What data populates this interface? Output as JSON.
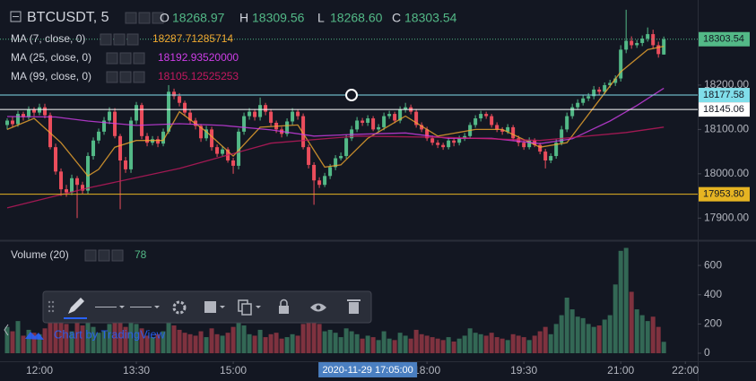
{
  "chart_data": {
    "type": "candlestick",
    "title": "BTCUSDT, 5",
    "ohlc_legend": [
      {
        "key": "O",
        "value": "18268.97"
      },
      {
        "key": "H",
        "value": "18309.56"
      },
      {
        "key": "L",
        "value": "18268.60"
      },
      {
        "key": "C",
        "value": "18303.54"
      }
    ],
    "up_color": "#53b987",
    "down_color": "#eb4d5c",
    "candles": {
      "open": [
        18110,
        18120,
        18112,
        18135,
        18128,
        18145,
        18138,
        18150,
        18132,
        18060,
        18005,
        17965,
        17958,
        17990,
        17975,
        17962,
        18040,
        18075,
        18095,
        18120,
        18140,
        18085,
        18030,
        18010,
        18120,
        18155,
        18085,
        18070,
        18078,
        18068,
        18095,
        18185,
        18175,
        18160,
        18138,
        18120,
        18108,
        18080,
        18100,
        18060,
        18045,
        18055,
        18030,
        18018,
        18095,
        18130,
        18140,
        18128,
        18155,
        18140,
        18115,
        18100,
        18090,
        18118,
        18140,
        18130,
        18060,
        18020,
        17985,
        17975,
        17995,
        18015,
        18035,
        18040,
        18080,
        18100,
        18120,
        18115,
        18125,
        18100,
        18105,
        18130,
        18135,
        18120,
        18145,
        18150,
        18140,
        18110,
        18100,
        18080,
        18070,
        18065,
        18060,
        18075,
        18070,
        18080,
        18085,
        18110,
        18125,
        18135,
        18130,
        18110,
        18100,
        18095,
        18105,
        18080,
        18070,
        18060,
        18075,
        18065,
        18050,
        18030,
        18040,
        18070,
        18100,
        18130,
        18150,
        18160,
        18170,
        18175,
        18190,
        18185,
        18200,
        18205,
        18215,
        18280,
        18300,
        18290,
        18295,
        18305,
        18315,
        18290,
        18268.97
      ],
      "high": [
        18125,
        18128,
        18142,
        18140,
        18152,
        18150,
        18158,
        18158,
        18138,
        18068,
        18012,
        17975,
        17998,
        17995,
        17982,
        18048,
        18082,
        18102,
        18128,
        18150,
        18148,
        18090,
        18038,
        18128,
        18162,
        18160,
        18092,
        18085,
        18085,
        18102,
        18200,
        18192,
        18182,
        18165,
        18145,
        18126,
        18112,
        18108,
        18106,
        18066,
        18062,
        18060,
        18036,
        18102,
        18138,
        18148,
        18146,
        18172,
        18160,
        18146,
        18120,
        18106,
        18125,
        18148,
        18145,
        18136,
        18066,
        18026,
        17992,
        18002,
        18022,
        18042,
        18048,
        18088,
        18108,
        18128,
        18126,
        18132,
        18130,
        18112,
        18138,
        18142,
        18140,
        18152,
        18160,
        18156,
        18146,
        18116,
        18106,
        18086,
        18076,
        18070,
        18082,
        18080,
        18086,
        18092,
        18116,
        18132,
        18142,
        18140,
        18135,
        18116,
        18105,
        18112,
        18110,
        18086,
        18076,
        18082,
        18080,
        18070,
        18056,
        18046,
        18078,
        18108,
        18138,
        18158,
        18168,
        18178,
        18182,
        18198,
        18196,
        18206,
        18212,
        18222,
        18290,
        18370,
        18310,
        18302,
        18312,
        18330,
        18325,
        18298,
        18309.56
      ],
      "low": [
        18100,
        18105,
        18106,
        18120,
        18122,
        18130,
        18132,
        18125,
        18055,
        17998,
        17950,
        17948,
        17952,
        17900,
        17955,
        17955,
        18032,
        18068,
        18088,
        18112,
        18080,
        17920,
        18002,
        18002,
        18112,
        18078,
        18062,
        18064,
        18060,
        18062,
        18090,
        18168,
        18152,
        18130,
        18112,
        18100,
        18072,
        18074,
        18052,
        18038,
        18040,
        18025,
        18000,
        18010,
        18088,
        18122,
        18120,
        18120,
        18132,
        18108,
        18092,
        18082,
        18084,
        18110,
        18122,
        18055,
        18012,
        17930,
        17968,
        17970,
        17988,
        18008,
        18030,
        18034,
        18074,
        18094,
        18108,
        18108,
        18096,
        18094,
        18098,
        18124,
        18114,
        18114,
        18138,
        18134,
        18104,
        18094,
        18074,
        18064,
        18058,
        18054,
        18055,
        18062,
        18064,
        18074,
        18080,
        18104,
        18118,
        18124,
        18104,
        18094,
        18088,
        18090,
        18074,
        18062,
        18054,
        18055,
        18060,
        18044,
        18012,
        18024,
        18034,
        18064,
        18094,
        18124,
        18144,
        18154,
        18164,
        18168,
        18178,
        18180,
        18194,
        18198,
        18208,
        18272,
        18282,
        18284,
        18288,
        18298,
        18282,
        18262,
        18268.6
      ],
      "close": [
        18120,
        18112,
        18135,
        18128,
        18145,
        18138,
        18150,
        18132,
        18060,
        18005,
        17965,
        17958,
        17990,
        17975,
        17962,
        18040,
        18075,
        18095,
        18120,
        18140,
        18085,
        18030,
        18010,
        18120,
        18155,
        18085,
        18070,
        18078,
        18068,
        18095,
        18185,
        18175,
        18160,
        18138,
        18120,
        18108,
        18080,
        18100,
        18060,
        18045,
        18055,
        18030,
        18018,
        18095,
        18130,
        18140,
        18128,
        18155,
        18140,
        18115,
        18100,
        18090,
        18118,
        18140,
        18130,
        18060,
        18020,
        17985,
        17975,
        17995,
        18015,
        18035,
        18040,
        18080,
        18100,
        18120,
        18115,
        18125,
        18100,
        18105,
        18130,
        18135,
        18120,
        18145,
        18150,
        18140,
        18110,
        18100,
        18080,
        18070,
        18065,
        18060,
        18075,
        18070,
        18080,
        18085,
        18110,
        18125,
        18135,
        18130,
        18110,
        18100,
        18095,
        18105,
        18080,
        18070,
        18060,
        18075,
        18065,
        18050,
        18030,
        18040,
        18070,
        18100,
        18130,
        18150,
        18160,
        18170,
        18175,
        18190,
        18185,
        18200,
        18205,
        18215,
        18280,
        18300,
        18290,
        18295,
        18305,
        18315,
        18290,
        18270,
        18303.54
      ]
    },
    "indicators": [
      {
        "name": "MA (7, close, 0)",
        "value": "18287.71285714",
        "color": "#f0a830",
        "x": [
          0,
          5,
          10,
          15,
          17,
          20,
          24,
          29,
          32,
          37,
          42,
          47,
          54,
          59,
          62,
          67,
          74,
          80,
          87,
          92,
          99,
          104,
          109,
          114,
          119,
          122
        ],
        "values": [
          18100,
          18125,
          18070,
          17995,
          18010,
          18060,
          18075,
          18075,
          18140,
          18095,
          18040,
          18105,
          18110,
          18015,
          18020,
          18080,
          18130,
          18085,
          18100,
          18100,
          18060,
          18070,
          18150,
          18230,
          18280,
          18287.71
        ]
      },
      {
        "name": "MA (25, close, 0)",
        "value": "18192.93520000",
        "color": "#cf3ee8",
        "x": [
          0,
          9,
          15,
          24,
          32,
          40,
          49,
          57,
          65,
          74,
          82,
          90,
          99,
          105,
          112,
          117,
          122
        ],
        "values": [
          18129,
          18128,
          18119,
          18109,
          18113,
          18109,
          18099,
          18085,
          18089,
          18092,
          18080,
          18080,
          18068,
          18079,
          18119,
          18154,
          18192.94
        ]
      },
      {
        "name": "MA (99, close, 0)",
        "value": "18105.12525253",
        "color": "#c4195f",
        "x": [
          0,
          15,
          32,
          49,
          65,
          82,
          99,
          115,
          122
        ],
        "values": [
          17923,
          17968,
          18012,
          18069,
          18085,
          18082,
          18075,
          18093,
          18105.13
        ]
      }
    ],
    "ylim": [
      17850,
      18392
    ],
    "yticks": [
      {
        "value": 18200,
        "label": "18200.00"
      },
      {
        "value": 18100,
        "label": "18100.00"
      },
      {
        "value": 18000,
        "label": "18000.00"
      },
      {
        "value": 17900,
        "label": "17900.00"
      }
    ],
    "price_lines": [
      {
        "value": 18303.54,
        "label": "18303.54",
        "color": "#53b987",
        "style": "dotted"
      },
      {
        "value": 18177.58,
        "label": "18177.58",
        "color": "#80deea",
        "style": "solid"
      },
      {
        "value": 18145.06,
        "label": "18145.06",
        "color": "#ffffff",
        "style": "solid"
      },
      {
        "value": 17953.8,
        "label": "17953.80",
        "color": "#e6b422",
        "style": "solid"
      }
    ],
    "xlim": [
      -0.5,
      128.3
    ],
    "xticks": [
      {
        "value": 6,
        "label": "12:00"
      },
      {
        "value": 24,
        "label": "13:30"
      },
      {
        "value": 42,
        "label": "15:00"
      },
      {
        "value": 78,
        "label": "18:00"
      },
      {
        "value": 96,
        "label": "19:30"
      },
      {
        "value": 114,
        "label": "21:00"
      },
      {
        "value": 126,
        "label": "22:00"
      }
    ],
    "crosshair": {
      "x": 67,
      "label": "2020-11-29 17:05:00"
    },
    "volume": {
      "name": "Volume (20)",
      "ylim": [
        -55,
        760
      ],
      "yticks": [
        0,
        200,
        400,
        600
      ],
      "values": [
        180,
        150,
        220,
        120,
        160,
        140,
        130,
        170,
        310,
        260,
        280,
        200,
        150,
        240,
        190,
        260,
        180,
        140,
        150,
        200,
        230,
        250,
        180,
        290,
        200,
        170,
        120,
        110,
        130,
        150,
        300,
        190,
        160,
        140,
        130,
        120,
        150,
        110,
        170,
        130,
        120,
        140,
        180,
        210,
        190,
        130,
        120,
        160,
        110,
        130,
        140,
        100,
        110,
        130,
        120,
        200,
        240,
        350,
        200,
        150,
        160,
        140,
        110,
        170,
        150,
        130,
        100,
        120,
        110,
        90,
        150,
        100,
        90,
        140,
        120,
        100,
        160,
        130,
        120,
        110,
        100,
        90,
        110,
        80,
        100,
        120,
        170,
        140,
        130,
        120,
        140,
        110,
        100,
        90,
        130,
        120,
        110,
        90,
        120,
        150,
        180,
        130,
        200,
        260,
        380,
        300,
        250,
        240,
        200,
        180,
        190,
        230,
        260,
        470,
        700,
        720,
        420,
        300,
        260,
        220,
        250,
        180,
        78
      ]
    },
    "watermark": "Chart by TradingView"
  }
}
